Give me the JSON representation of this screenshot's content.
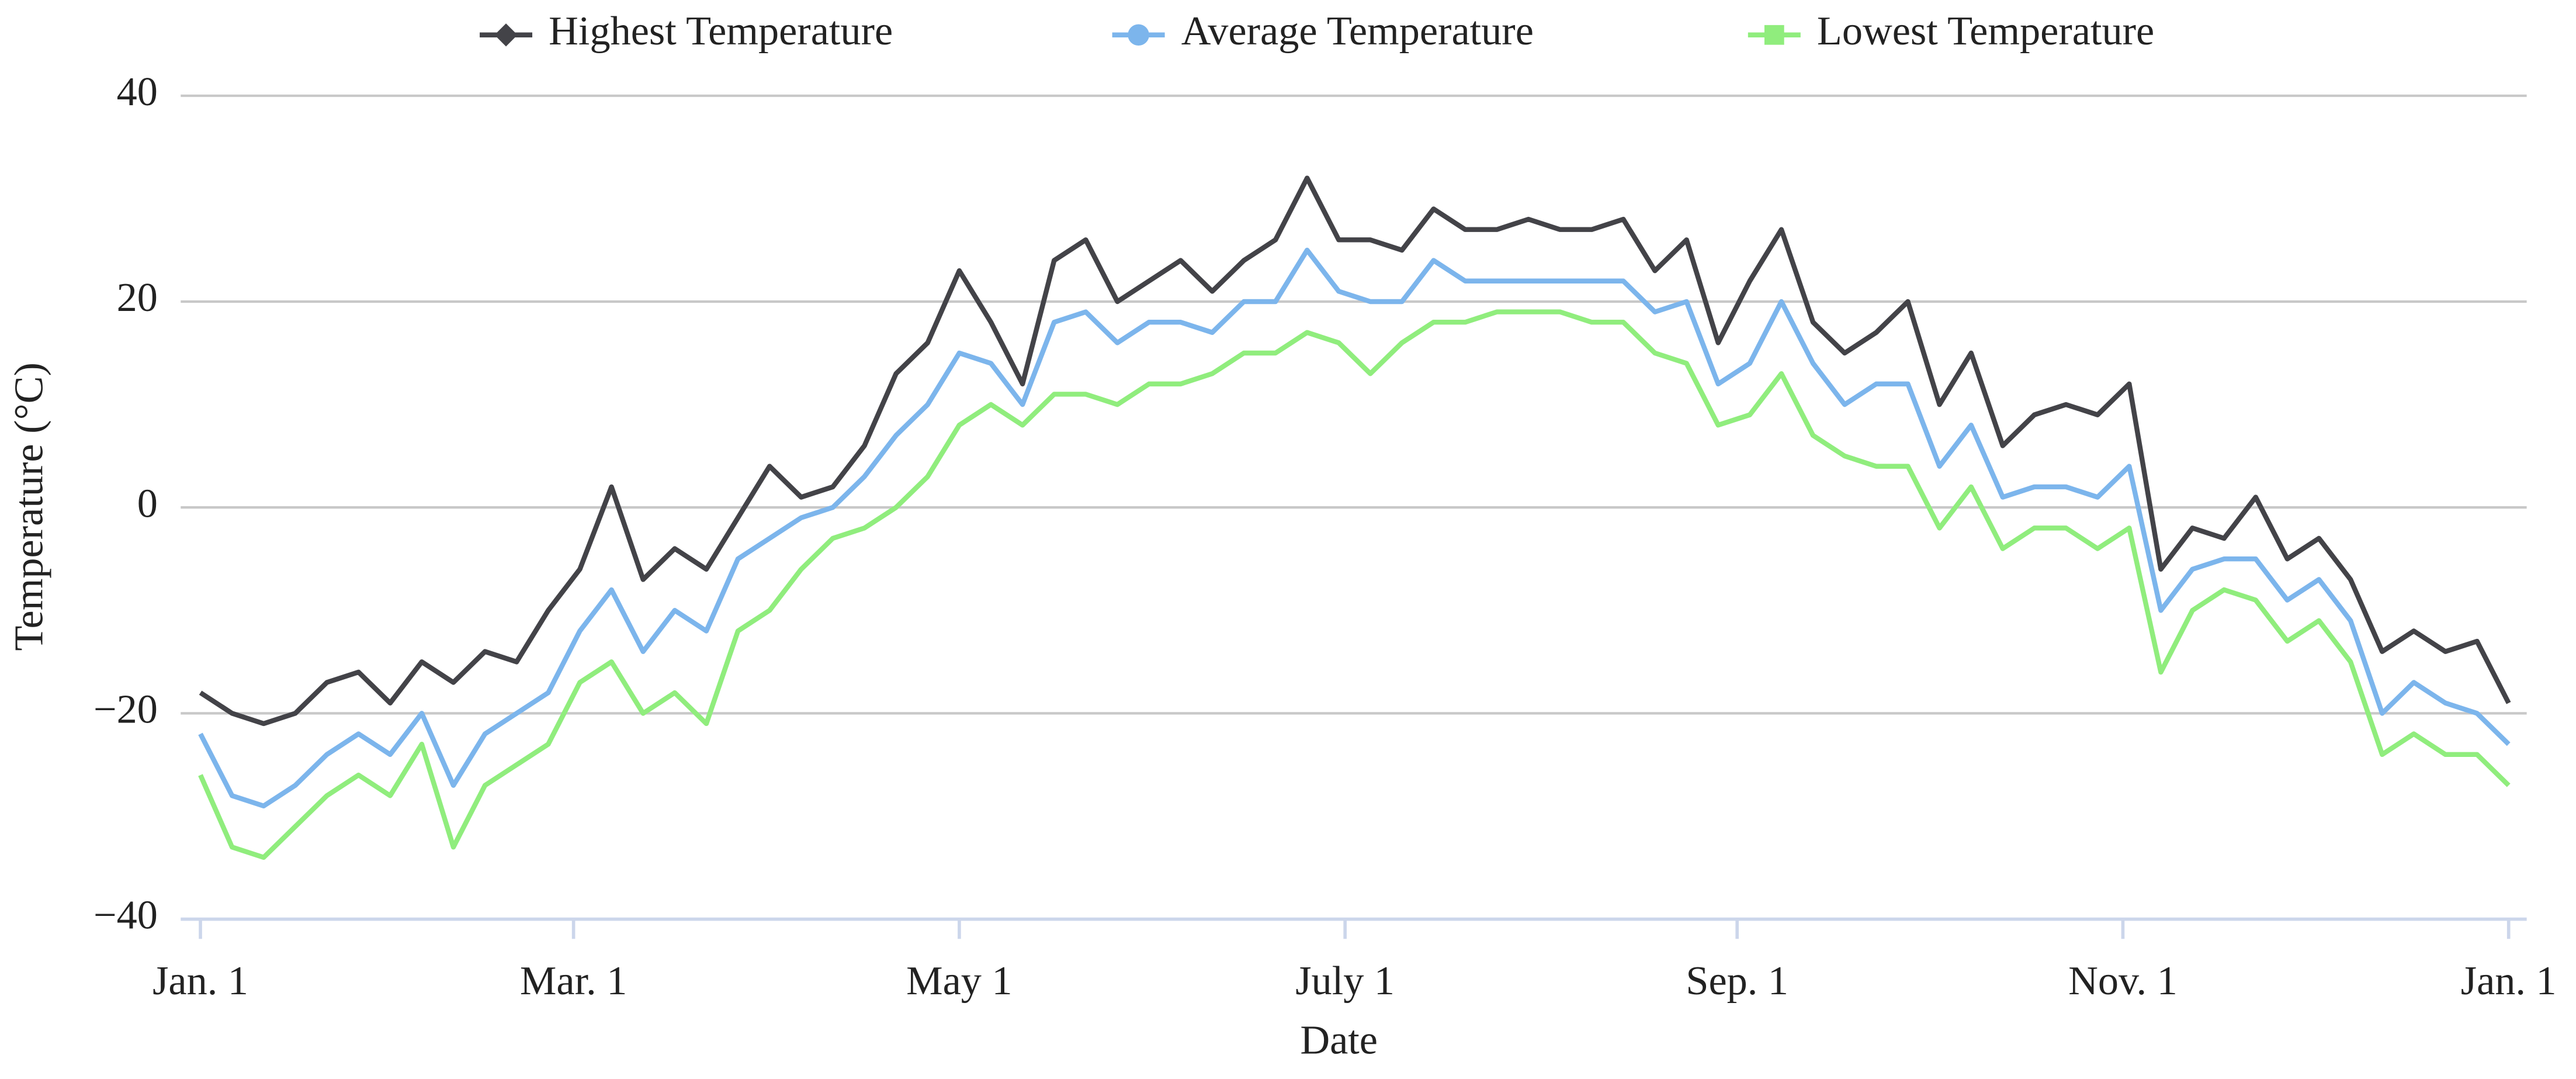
{
  "chart_data": {
    "type": "line",
    "x_label": "Date",
    "y_label": "Temperature (°C)",
    "xlim": [
      0,
      365
    ],
    "xticks": [
      {
        "value": 0,
        "label": "Jan. 1"
      },
      {
        "value": 59,
        "label": "Mar. 1"
      },
      {
        "value": 120,
        "label": "May 1"
      },
      {
        "value": 181,
        "label": "July 1"
      },
      {
        "value": 243,
        "label": "Sep. 1"
      },
      {
        "value": 304,
        "label": "Nov. 1"
      },
      {
        "value": 365,
        "label": "Jan. 1"
      }
    ],
    "ylim": [
      -40,
      40
    ],
    "yticks": [
      {
        "value": -40,
        "label": "−40"
      },
      {
        "value": -20,
        "label": "−20"
      },
      0,
      20,
      40
    ],
    "grid": true,
    "legend": "top",
    "x": [
      0,
      5,
      10,
      15,
      20,
      25,
      30,
      35,
      40,
      45,
      50,
      55,
      60,
      65,
      70,
      75,
      80,
      85,
      90,
      95,
      100,
      105,
      110,
      115,
      120,
      125,
      130,
      135,
      140,
      145,
      150,
      155,
      160,
      165,
      170,
      175,
      180,
      185,
      190,
      195,
      200,
      205,
      210,
      215,
      220,
      225,
      230,
      235,
      240,
      245,
      250,
      255,
      260,
      265,
      270,
      275,
      280,
      285,
      290,
      295,
      300,
      305,
      310,
      315,
      320,
      325,
      330,
      335,
      340,
      345,
      350,
      355,
      360,
      365
    ],
    "series": [
      {
        "name": "Highest Temperature",
        "color": "#434348",
        "marker": "diamond",
        "values": [
          -18,
          -20,
          -21,
          -20,
          -17,
          -16,
          -19,
          -15,
          -17,
          -14,
          -15,
          -10,
          -6,
          2,
          -7,
          -4,
          -6,
          -1,
          4,
          1,
          2,
          6,
          13,
          16,
          23,
          18,
          12,
          24,
          26,
          20,
          22,
          24,
          21,
          24,
          26,
          32,
          26,
          26,
          25,
          29,
          27,
          27,
          28,
          27,
          27,
          28,
          23,
          26,
          16,
          22,
          27,
          18,
          15,
          17,
          20,
          10,
          15,
          6,
          9,
          10,
          9,
          12,
          -6,
          -2,
          -3,
          1,
          -5,
          -3,
          -7,
          -14,
          -12,
          -14,
          -13,
          -19
        ]
      },
      {
        "name": "Average Temperature",
        "color": "#7cb5ec",
        "marker": "circle",
        "values": [
          -22,
          -28,
          -29,
          -27,
          -24,
          -22,
          -24,
          -20,
          -27,
          -22,
          -20,
          -18,
          -12,
          -8,
          -14,
          -10,
          -12,
          -5,
          -3,
          -1,
          0,
          3,
          7,
          10,
          15,
          14,
          10,
          18,
          19,
          16,
          18,
          18,
          17,
          20,
          20,
          25,
          21,
          20,
          20,
          24,
          22,
          22,
          22,
          22,
          22,
          22,
          19,
          20,
          12,
          14,
          20,
          14,
          10,
          12,
          12,
          4,
          8,
          1,
          2,
          2,
          1,
          4,
          -10,
          -6,
          -5,
          -5,
          -9,
          -7,
          -11,
          -20,
          -17,
          -19,
          -20,
          -23
        ]
      },
      {
        "name": "Lowest Temperature",
        "color": "#90ed7d",
        "marker": "square",
        "values": [
          -26,
          -33,
          -34,
          -31,
          -28,
          -26,
          -28,
          -23,
          -33,
          -27,
          -25,
          -23,
          -17,
          -15,
          -20,
          -18,
          -21,
          -12,
          -10,
          -6,
          -3,
          -2,
          0,
          3,
          8,
          10,
          8,
          11,
          11,
          10,
          12,
          12,
          13,
          15,
          15,
          17,
          16,
          13,
          16,
          18,
          18,
          19,
          19,
          19,
          18,
          18,
          15,
          14,
          8,
          9,
          13,
          7,
          5,
          4,
          4,
          -2,
          2,
          -4,
          -2,
          -2,
          -4,
          -2,
          -16,
          -10,
          -8,
          -9,
          -13,
          -11,
          -15,
          -24,
          -22,
          -24,
          -24,
          -27
        ]
      }
    ]
  }
}
